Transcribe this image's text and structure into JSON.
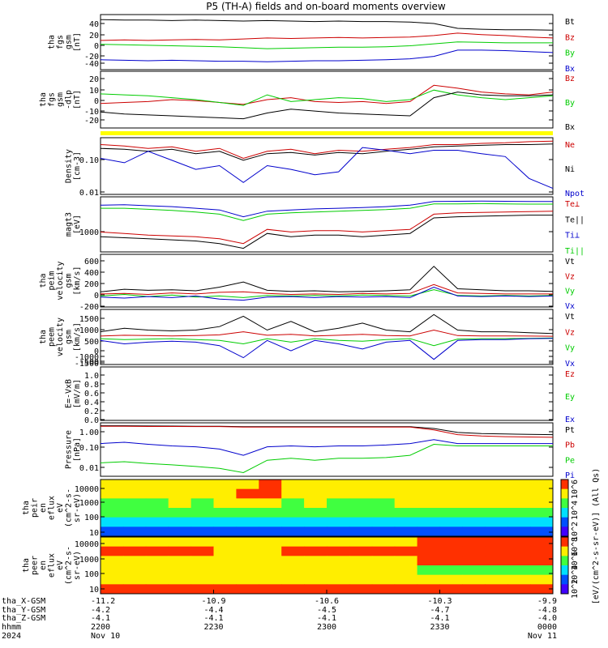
{
  "title": "P5 (TH-A) fields and on-board moments overview",
  "chart_data": [
    {
      "id": "fgs-gsm",
      "type": "line",
      "ylabel": [
        "tha",
        "fgs",
        "gsm",
        "[nT]"
      ],
      "yticks": [
        "40",
        "20",
        "0",
        "-20",
        "-40"
      ],
      "ylim": [
        -52,
        55
      ],
      "series": [
        {
          "name": "Bt",
          "color": "#000000",
          "values": [
            48,
            47,
            47,
            46,
            47,
            46,
            45,
            46,
            45,
            44,
            45,
            44,
            44,
            43,
            40,
            30,
            28,
            27,
            27,
            26
          ]
        },
        {
          "name": "Bz",
          "color": "#cc0000",
          "values": [
            5,
            6,
            5,
            6,
            7,
            6,
            8,
            10,
            9,
            10,
            11,
            10,
            11,
            12,
            15,
            20,
            17,
            15,
            12,
            10
          ]
        },
        {
          "name": "By",
          "color": "#00cc00",
          "values": [
            -3,
            -4,
            -5,
            -6,
            -7,
            -8,
            -10,
            -12,
            -11,
            -10,
            -9,
            -9,
            -8,
            -6,
            -2,
            2,
            1,
            0,
            0,
            0
          ]
        },
        {
          "name": "Bx",
          "color": "#0000cc",
          "values": [
            -35,
            -36,
            -37,
            -36,
            -37,
            -38,
            -38,
            -39,
            -38,
            -37,
            -37,
            -36,
            -35,
            -33,
            -28,
            -15,
            -15,
            -16,
            -18,
            -20
          ]
        }
      ]
    },
    {
      "id": "fgs-gse",
      "type": "line",
      "ylabel": [
        "tha",
        "fgs",
        "gsm",
        "-dlp",
        "[nT]"
      ],
      "yticks": [
        "20",
        "10",
        "0",
        "-10",
        "-20"
      ],
      "ylim": [
        -28,
        28
      ],
      "series": [
        {
          "name": "Bz",
          "color": "#cc0000",
          "values": [
            -4,
            -3,
            -2,
            0,
            -1,
            -3,
            -5,
            0,
            2,
            -2,
            -3,
            -2,
            -4,
            -2,
            15,
            12,
            8,
            6,
            5,
            8
          ]
        },
        {
          "name": "By",
          "color": "#00cc00",
          "values": [
            6,
            5,
            4,
            2,
            0,
            -3,
            -6,
            5,
            -2,
            0,
            2,
            1,
            -2,
            0,
            10,
            5,
            2,
            0,
            2,
            4
          ]
        },
        {
          "name": "Bx",
          "color": "#000000",
          "values": [
            -13,
            -15,
            -16,
            -17,
            -18,
            -19,
            -20,
            -14,
            -10,
            -12,
            -14,
            -15,
            -16,
            -17,
            2,
            8,
            5,
            4,
            4,
            5
          ]
        }
      ]
    },
    {
      "id": "density",
      "type": "line",
      "ylabel": [
        "Density",
        "[cm-3]"
      ],
      "yticks": [
        "0.10",
        "0.01"
      ],
      "ylim": [
        0.005,
        0.3
      ],
      "yscale": "log",
      "series": [
        {
          "name": "Ne",
          "color": "#cc0000",
          "values": [
            0.2,
            0.18,
            0.15,
            0.17,
            0.12,
            0.15,
            0.07,
            0.12,
            0.14,
            0.1,
            0.13,
            0.12,
            0.14,
            0.16,
            0.2,
            0.2,
            0.22,
            0.23,
            0.25,
            0.26
          ]
        },
        {
          "name": "Ni",
          "color": "#000000",
          "values": [
            0.15,
            0.14,
            0.12,
            0.14,
            0.1,
            0.12,
            0.06,
            0.1,
            0.11,
            0.09,
            0.11,
            0.1,
            0.12,
            0.14,
            0.17,
            0.18,
            0.19,
            0.2,
            0.2,
            0.21
          ]
        },
        {
          "name": "Npot",
          "color": "#0000cc",
          "values": [
            0.07,
            0.05,
            0.12,
            0.06,
            0.03,
            0.04,
            0.011,
            0.04,
            0.03,
            0.02,
            0.025,
            0.16,
            0.13,
            0.1,
            0.13,
            0.13,
            0.1,
            0.08,
            0.015,
            0.007
          ]
        }
      ]
    },
    {
      "id": "temperature",
      "type": "line",
      "ylabel": [
        "magt3",
        "[eV]"
      ],
      "yticks": [
        "1000"
      ],
      "ylim": [
        400,
        9000
      ],
      "yscale": "log",
      "series": [
        {
          "name": "Te⊥",
          "color": "#cc0000",
          "values": [
            1200,
            1100,
            1000,
            950,
            900,
            800,
            600,
            1400,
            1200,
            1300,
            1300,
            1200,
            1300,
            1400,
            3500,
            3800,
            3900,
            4000,
            4100,
            4200
          ]
        },
        {
          "name": "Te||",
          "color": "#000000",
          "values": [
            900,
            850,
            800,
            750,
            700,
            600,
            450,
            1100,
            900,
            1000,
            1000,
            900,
            1000,
            1100,
            2800,
            3000,
            3100,
            3200,
            3300,
            3300
          ]
        },
        {
          "name": "Ti⊥",
          "color": "#0000cc",
          "values": [
            6000,
            6200,
            5800,
            5500,
            5000,
            4500,
            3000,
            4200,
            4500,
            4800,
            5000,
            5200,
            5500,
            6000,
            7500,
            7600,
            7700,
            7600,
            7500,
            7500
          ]
        },
        {
          "name": "Ti||",
          "color": "#00cc00",
          "values": [
            5000,
            5000,
            4700,
            4400,
            4000,
            3500,
            2400,
            3500,
            3800,
            4000,
            4200,
            4400,
            4600,
            5000,
            6500,
            6500,
            6600,
            6500,
            6400,
            6400
          ]
        }
      ]
    },
    {
      "id": "peim-velocity",
      "type": "line",
      "ylabel": [
        "tha",
        "peim",
        "velocity",
        "gsm",
        "[km/s]"
      ],
      "yticks": [
        "600",
        "400",
        "200",
        "0",
        "-200"
      ],
      "ylim": [
        -200,
        750
      ],
      "series": [
        {
          "name": "Vt",
          "color": "#000000",
          "values": [
            60,
            110,
            90,
            100,
            80,
            150,
            250,
            90,
            70,
            80,
            60,
            70,
            80,
            100,
            550,
            120,
            100,
            80,
            80,
            70
          ]
        },
        {
          "name": "Vz",
          "color": "#cc0000",
          "values": [
            20,
            30,
            10,
            40,
            20,
            50,
            60,
            30,
            10,
            20,
            10,
            30,
            20,
            30,
            200,
            40,
            30,
            20,
            20,
            20
          ]
        },
        {
          "name": "Vy",
          "color": "#00cc00",
          "values": [
            -20,
            10,
            -30,
            0,
            -40,
            -20,
            -50,
            -10,
            -20,
            -10,
            -20,
            0,
            -10,
            -20,
            100,
            -10,
            -20,
            -10,
            -20,
            -10
          ]
        },
        {
          "name": "Vx",
          "color": "#0000cc",
          "values": [
            -40,
            -60,
            -30,
            -50,
            -20,
            -80,
            -100,
            -40,
            -30,
            -50,
            -30,
            -40,
            -30,
            -50,
            150,
            -20,
            -30,
            -20,
            -30,
            -20
          ]
        }
      ]
    },
    {
      "id": "peem-velocity",
      "type": "line",
      "ylabel": [
        "tha",
        "peem",
        "velocity",
        "gsm",
        "[km/s]"
      ],
      "yticks": [
        "1500",
        "1000",
        "500",
        "0",
        "-500",
        "-1000",
        "-1500"
      ],
      "ylim": [
        -1500,
        1500
      ],
      "series": [
        {
          "name": "Vt",
          "color": "#000000",
          "values": [
            300,
            500,
            400,
            350,
            400,
            600,
            1200,
            400,
            900,
            300,
            500,
            800,
            400,
            300,
            1300,
            400,
            300,
            300,
            250,
            200
          ]
        },
        {
          "name": "Vz",
          "color": "#cc0000",
          "values": [
            50,
            100,
            80,
            60,
            80,
            120,
            300,
            100,
            150,
            60,
            100,
            150,
            80,
            60,
            400,
            80,
            60,
            60,
            50,
            40
          ]
        },
        {
          "name": "Vy",
          "color": "#00cc00",
          "values": [
            -100,
            -150,
            -120,
            -100,
            -150,
            -200,
            -400,
            -100,
            -300,
            -100,
            -200,
            -250,
            -150,
            -100,
            -500,
            -120,
            -100,
            -100,
            -80,
            -60
          ]
        },
        {
          "name": "Vx",
          "color": "#0000cc",
          "values": [
            -200,
            -400,
            -300,
            -250,
            -300,
            -500,
            -1200,
            -200,
            -800,
            -200,
            -400,
            -700,
            -300,
            -200,
            -1300,
            -200,
            -150,
            -150,
            -100,
            -80
          ]
        }
      ]
    },
    {
      "id": "e-field",
      "type": "line",
      "ylabel": [
        "E=-VxB",
        "[mV/m]"
      ],
      "yticks": [
        "1.0",
        "0.8",
        "0.6",
        "0.4",
        "0.2",
        "0.0"
      ],
      "ylim": [
        0,
        1
      ],
      "series": [
        {
          "name": "Ez",
          "color": "#cc0000",
          "values": []
        },
        {
          "name": "Ey",
          "color": "#00cc00",
          "values": []
        },
        {
          "name": "Ex",
          "color": "#0000cc",
          "values": []
        }
      ]
    },
    {
      "id": "pressure",
      "type": "line",
      "ylabel": [
        "Pressure",
        "[nPa]"
      ],
      "yticks": [
        "1.00",
        "0.10",
        "0.01"
      ],
      "ylim": [
        0.004,
        1.1
      ],
      "yscale": "log",
      "series": [
        {
          "name": "Pt",
          "color": "#000000",
          "values": [
            0.95,
            0.95,
            0.93,
            0.92,
            0.9,
            0.9,
            0.85,
            0.85,
            0.85,
            0.85,
            0.85,
            0.85,
            0.85,
            0.85,
            0.7,
            0.45,
            0.4,
            0.38,
            0.36,
            0.35
          ]
        },
        {
          "name": "Pb",
          "color": "#cc0000",
          "values": [
            0.9,
            0.9,
            0.88,
            0.88,
            0.87,
            0.87,
            0.82,
            0.82,
            0.82,
            0.82,
            0.82,
            0.82,
            0.82,
            0.82,
            0.6,
            0.35,
            0.3,
            0.28,
            0.27,
            0.26
          ]
        },
        {
          "name": "Pe",
          "color": "#00cc00",
          "values": [
            0.015,
            0.017,
            0.014,
            0.012,
            0.01,
            0.008,
            0.005,
            0.02,
            0.025,
            0.02,
            0.025,
            0.025,
            0.027,
            0.035,
            0.12,
            0.1,
            0.1,
            0.1,
            0.1,
            0.1
          ]
        },
        {
          "name": "Pi",
          "color": "#0000cc",
          "values": [
            0.13,
            0.15,
            0.12,
            0.1,
            0.09,
            0.07,
            0.035,
            0.09,
            0.1,
            0.09,
            0.1,
            0.1,
            0.11,
            0.13,
            0.2,
            0.13,
            0.13,
            0.13,
            0.13,
            0.13
          ]
        }
      ]
    },
    {
      "id": "peir-spectrogram",
      "type": "heatmap",
      "ylabel": [
        "tha",
        "peir",
        "en",
        "eflux",
        "eV",
        "(cm^2-s-",
        "sr-eV)"
      ],
      "yticks": [
        "10000",
        "1000",
        "100",
        "10"
      ],
      "colorbar_label": "[eV/(cm^2-s-sr-eV)] (All Qs)",
      "colorbar_ticks": [
        "10^6",
        "10^4",
        "10^2"
      ],
      "rows": [
        [
          4,
          4,
          4,
          4,
          4,
          4,
          4,
          5,
          4,
          4,
          4,
          4,
          4,
          4,
          4,
          4,
          4,
          4,
          4,
          4
        ],
        [
          4,
          4,
          4,
          4,
          4,
          4,
          5,
          5,
          4,
          4,
          4,
          4,
          4,
          4,
          4,
          4,
          4,
          4,
          4,
          4
        ],
        [
          3,
          3,
          3,
          4,
          3,
          4,
          4,
          4,
          3,
          4,
          3,
          3,
          3,
          4,
          4,
          4,
          4,
          4,
          4,
          4
        ],
        [
          3,
          3,
          3,
          3,
          3,
          3,
          3,
          3,
          3,
          3,
          3,
          3,
          3,
          3,
          3,
          3,
          3,
          3,
          3,
          3
        ],
        [
          2,
          2,
          2,
          2,
          2,
          2,
          2,
          2,
          2,
          2,
          2,
          2,
          2,
          2,
          2,
          2,
          2,
          2,
          2,
          2
        ],
        [
          1,
          1,
          1,
          1,
          1,
          1,
          1,
          1,
          1,
          1,
          1,
          1,
          1,
          1,
          1,
          1,
          1,
          1,
          1,
          1
        ]
      ]
    },
    {
      "id": "peer-spectrogram",
      "type": "heatmap",
      "ylabel": [
        "tha",
        "peer",
        "en",
        "eflux",
        "eV",
        "(cm^2-s-",
        "sr-eV)"
      ],
      "yticks": [
        "10000",
        "1000",
        "100",
        "10"
      ],
      "colorbar_label": "[eV/(cm^2-s-sr-eV)] (All Qs)",
      "colorbar_ticks": [
        "10^8",
        "10^6",
        "10^4",
        "10^2"
      ],
      "rows": [
        [
          4,
          4,
          4,
          4,
          4,
          4,
          4,
          4,
          4,
          4,
          4,
          4,
          4,
          4,
          5,
          5,
          5,
          5,
          5,
          5
        ],
        [
          5,
          5,
          5,
          5,
          5,
          4,
          4,
          4,
          5,
          5,
          5,
          5,
          5,
          5,
          5,
          5,
          5,
          5,
          5,
          5
        ],
        [
          4,
          4,
          4,
          4,
          4,
          4,
          4,
          4,
          4,
          4,
          4,
          4,
          4,
          4,
          5,
          5,
          5,
          5,
          5,
          5
        ],
        [
          4,
          4,
          4,
          4,
          4,
          4,
          4,
          4,
          4,
          4,
          4,
          4,
          4,
          4,
          3,
          3,
          3,
          3,
          3,
          3
        ],
        [
          4,
          4,
          4,
          4,
          4,
          4,
          4,
          4,
          4,
          4,
          4,
          4,
          4,
          4,
          4,
          4,
          4,
          4,
          4,
          4
        ],
        [
          5,
          5,
          5,
          5,
          5,
          5,
          5,
          5,
          5,
          5,
          5,
          5,
          5,
          5,
          5,
          5,
          5,
          5,
          5,
          5
        ]
      ]
    }
  ],
  "x_axis": {
    "row_labels": [
      "tha_X-GSM",
      "tha_Y-GSM",
      "tha_Z-GSM",
      "hhmm",
      "2024"
    ],
    "ticks": [
      {
        "values": [
          "-11.2",
          "-4.2",
          "-4.1",
          "2200",
          "Nov 10"
        ]
      },
      {
        "values": [
          "-10.9",
          "-4.4",
          "-4.1",
          "2230",
          ""
        ]
      },
      {
        "values": [
          "-10.6",
          "-4.5",
          "-4.1",
          "2300",
          ""
        ]
      },
      {
        "values": [
          "-10.3",
          "-4.7",
          "-4.1",
          "2330",
          ""
        ]
      },
      {
        "values": [
          "-9.9",
          "-4.8",
          "-4.0",
          "0000",
          "Nov 11"
        ]
      }
    ]
  }
}
